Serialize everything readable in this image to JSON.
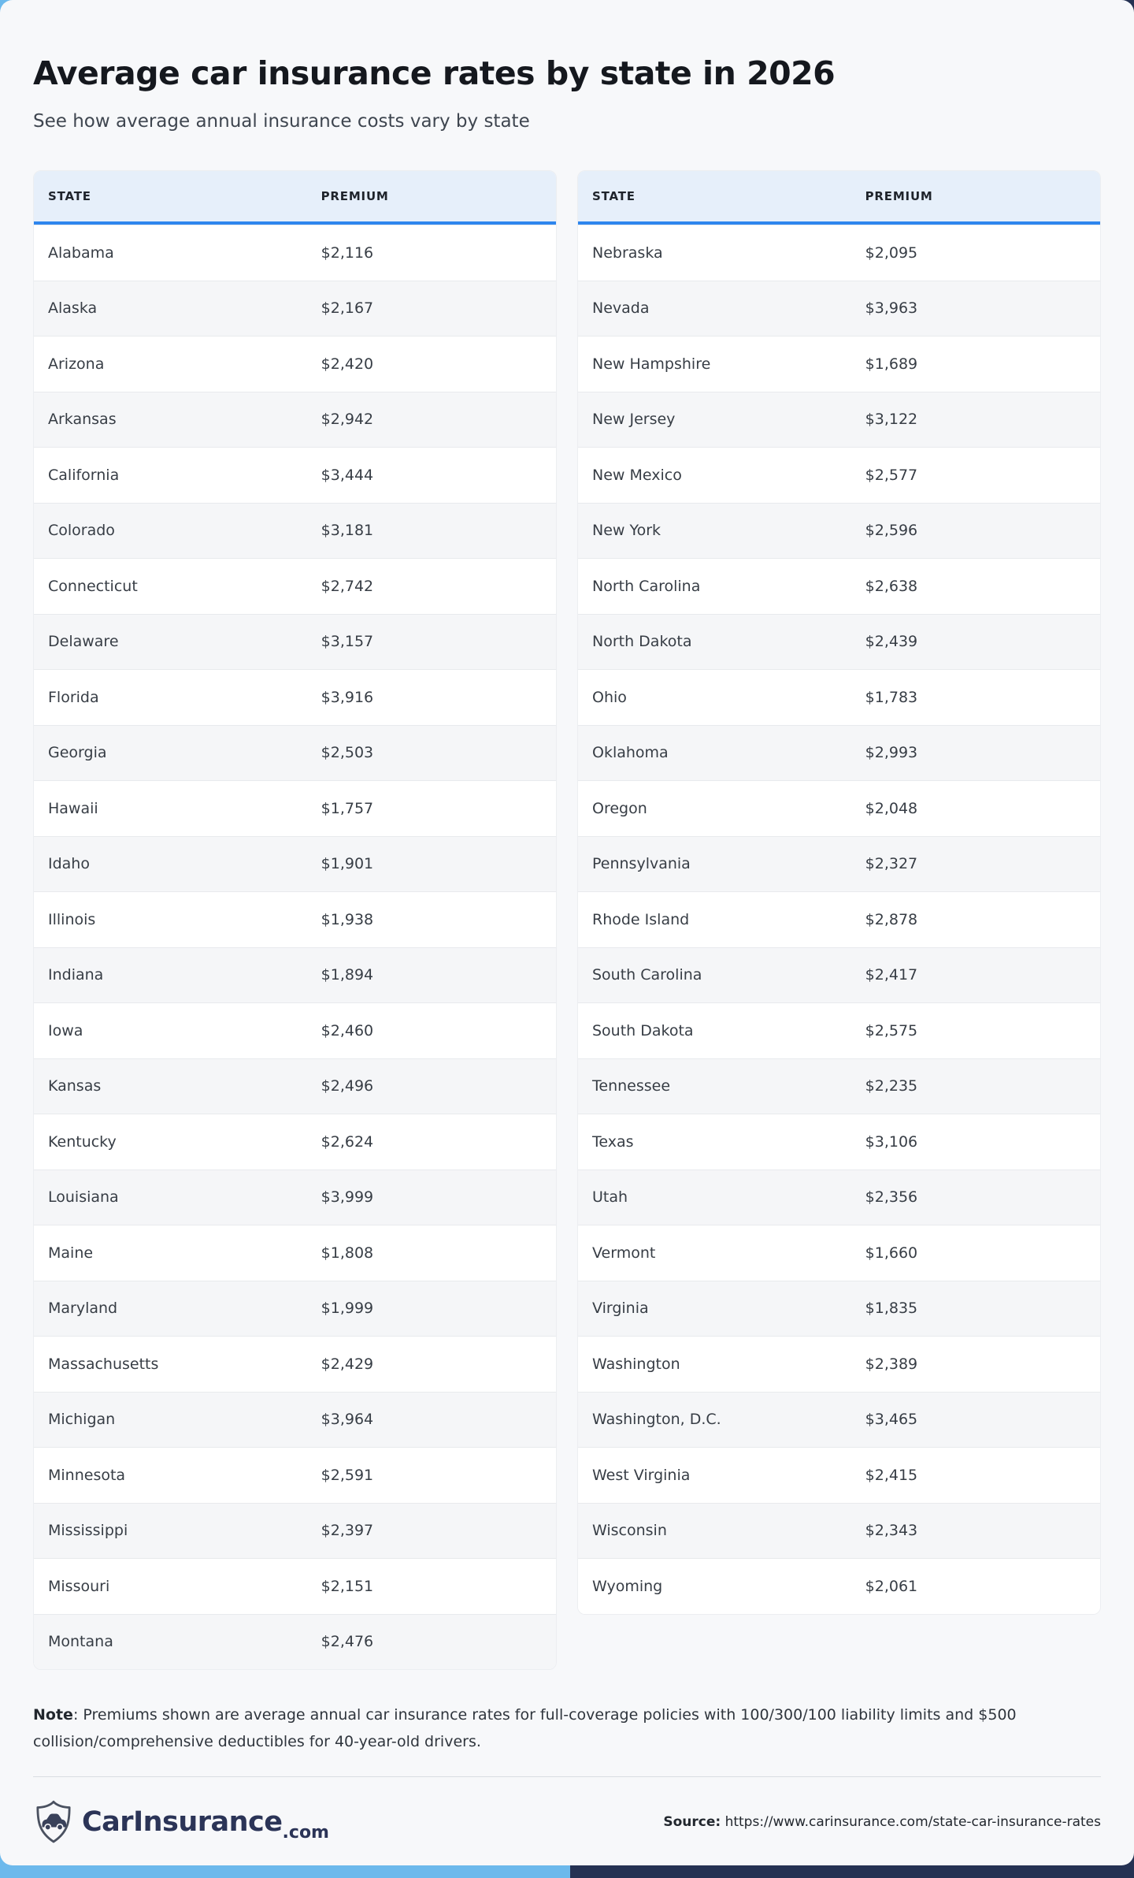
{
  "header": {
    "title": "Average car insurance rates by state in 2026",
    "subtitle": "See how average annual insurance costs vary by state"
  },
  "chart_data": {
    "type": "table",
    "title": "Average car insurance rates by state in 2026",
    "columns": [
      "STATE",
      "PREMIUM"
    ],
    "left_table": [
      [
        "Alabama",
        "$2,116"
      ],
      [
        "Alaska",
        "$2,167"
      ],
      [
        "Arizona",
        "$2,420"
      ],
      [
        "Arkansas",
        "$2,942"
      ],
      [
        "California",
        "$3,444"
      ],
      [
        "Colorado",
        "$3,181"
      ],
      [
        "Connecticut",
        "$2,742"
      ],
      [
        "Delaware",
        "$3,157"
      ],
      [
        "Florida",
        "$3,916"
      ],
      [
        "Georgia",
        "$2,503"
      ],
      [
        "Hawaii",
        "$1,757"
      ],
      [
        "Idaho",
        "$1,901"
      ],
      [
        "Illinois",
        "$1,938"
      ],
      [
        "Indiana",
        "$1,894"
      ],
      [
        "Iowa",
        "$2,460"
      ],
      [
        "Kansas",
        "$2,496"
      ],
      [
        "Kentucky",
        "$2,624"
      ],
      [
        "Louisiana",
        "$3,999"
      ],
      [
        "Maine",
        "$1,808"
      ],
      [
        "Maryland",
        "$1,999"
      ],
      [
        "Massachusetts",
        "$2,429"
      ],
      [
        "Michigan",
        "$3,964"
      ],
      [
        "Minnesota",
        "$2,591"
      ],
      [
        "Mississippi",
        "$2,397"
      ],
      [
        "Missouri",
        "$2,151"
      ],
      [
        "Montana",
        "$2,476"
      ]
    ],
    "right_table": [
      [
        "Nebraska",
        "$2,095"
      ],
      [
        "Nevada",
        "$3,963"
      ],
      [
        "New Hampshire",
        "$1,689"
      ],
      [
        "New Jersey",
        "$3,122"
      ],
      [
        "New Mexico",
        "$2,577"
      ],
      [
        "New York",
        "$2,596"
      ],
      [
        "North Carolina",
        "$2,638"
      ],
      [
        "North Dakota",
        "$2,439"
      ],
      [
        "Ohio",
        "$1,783"
      ],
      [
        "Oklahoma",
        "$2,993"
      ],
      [
        "Oregon",
        "$2,048"
      ],
      [
        "Pennsylvania",
        "$2,327"
      ],
      [
        "Rhode Island",
        "$2,878"
      ],
      [
        "South Carolina",
        "$2,417"
      ],
      [
        "South Dakota",
        "$2,575"
      ],
      [
        "Tennessee",
        "$2,235"
      ],
      [
        "Texas",
        "$3,106"
      ],
      [
        "Utah",
        "$2,356"
      ],
      [
        "Vermont",
        "$1,660"
      ],
      [
        "Virginia",
        "$1,835"
      ],
      [
        "Washington",
        "$2,389"
      ],
      [
        "Washington, D.C.",
        "$3,465"
      ],
      [
        "West Virginia",
        "$2,415"
      ],
      [
        "Wisconsin",
        "$2,343"
      ],
      [
        "Wyoming",
        "$2,061"
      ]
    ]
  },
  "note": {
    "label": "Note",
    "text": ": Premiums shown are average annual car insurance rates for full-coverage policies with 100/300/100 liability limits and $500 collision/comprehensive deductibles for 40-year-old drivers."
  },
  "footer": {
    "brand": "CarInsurance",
    "tld": ".com",
    "source_label": "Source:",
    "source_url": "https://www.carinsurance.com/state-car-insurance-rates"
  },
  "colors": {
    "accent_blue": "#2e86ee",
    "header_bg": "#e6effa",
    "bar_light_blue": "#6cb9ec",
    "bar_navy": "#253253",
    "brand_navy": "#2b3457",
    "card_bg": "#f7f8fa"
  }
}
